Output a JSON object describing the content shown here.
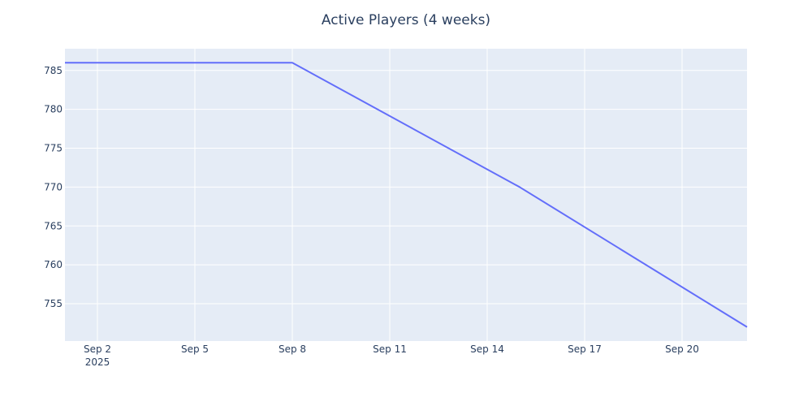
{
  "chart_data": {
    "type": "line",
    "title": "Active Players (4 weeks)",
    "xlabel": "",
    "ylabel": "",
    "x": [
      "2025-09-01",
      "2025-09-08",
      "2025-09-15",
      "2025-09-22"
    ],
    "series": [
      {
        "values": [
          786,
          786,
          770,
          752
        ],
        "color": "#636efa"
      }
    ],
    "xlim": [
      "2025-09-01",
      "2025-09-22"
    ],
    "ylim": [
      750.2,
      787.8
    ],
    "x_ticks": [
      {
        "date": "2025-09-02",
        "label": "Sep 2",
        "sublabel": "2025"
      },
      {
        "date": "2025-09-05",
        "label": "Sep 5"
      },
      {
        "date": "2025-09-08",
        "label": "Sep 8"
      },
      {
        "date": "2025-09-11",
        "label": "Sep 11"
      },
      {
        "date": "2025-09-14",
        "label": "Sep 14"
      },
      {
        "date": "2025-09-17",
        "label": "Sep 17"
      },
      {
        "date": "2025-09-20",
        "label": "Sep 20"
      }
    ],
    "y_ticks": [
      755,
      760,
      765,
      770,
      775,
      780,
      785
    ],
    "grid": true,
    "legend": "none",
    "plot_background": "#e5ecf6",
    "grid_color": "#ffffff"
  }
}
